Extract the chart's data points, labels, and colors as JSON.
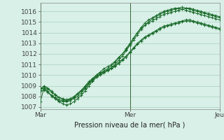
{
  "background_color": "#d8f0e8",
  "grid_color": "#aad0bb",
  "line_color": "#1a6b2a",
  "xlabel": "Pression niveau de la mer( hPa )",
  "ylim": [
    1006.8,
    1016.8
  ],
  "yticks": [
    1007,
    1008,
    1009,
    1010,
    1011,
    1012,
    1013,
    1014,
    1015,
    1016
  ],
  "xtick_labels": [
    "Mar",
    "Mer",
    "Jeu"
  ],
  "xtick_positions": [
    0,
    24,
    48
  ],
  "series": [
    [
      1007.5,
      1008.8,
      1008.5,
      1008.0,
      1007.8,
      1007.6,
      1007.5,
      1007.5,
      1007.6,
      1007.8,
      1008.0,
      1008.3,
      1008.7,
      1009.2,
      1009.6,
      1010.0,
      1010.3,
      1010.6,
      1010.8,
      1011.0,
      1011.3,
      1011.7,
      1012.0,
      1012.4,
      1012.9,
      1013.5,
      1014.0,
      1014.4,
      1014.7,
      1014.9,
      1015.1,
      1015.3,
      1015.5,
      1015.7,
      1015.8,
      1015.9,
      1016.0,
      1016.1,
      1016.2,
      1016.3,
      1016.3,
      1016.2,
      1016.1,
      1016.0,
      1015.9,
      1015.8,
      1015.7,
      1015.6,
      1015.5
    ],
    [
      1008.8,
      1008.7,
      1008.4,
      1008.1,
      1007.8,
      1007.5,
      1007.3,
      1007.2,
      1007.3,
      1007.5,
      1007.8,
      1008.1,
      1008.5,
      1009.0,
      1009.4,
      1009.8,
      1010.1,
      1010.3,
      1010.5,
      1010.7,
      1010.9,
      1011.2,
      1011.5,
      1011.8,
      1012.2,
      1012.6,
      1013.0,
      1013.3,
      1013.6,
      1013.8,
      1014.0,
      1014.2,
      1014.4,
      1014.6,
      1014.7,
      1014.8,
      1014.9,
      1015.0,
      1015.1,
      1015.2,
      1015.2,
      1015.1,
      1015.0,
      1014.9,
      1014.8,
      1014.7,
      1014.6,
      1014.5,
      1014.4
    ],
    [
      1008.5,
      1008.6,
      1008.4,
      1008.1,
      1007.9,
      1007.7,
      1007.6,
      1007.6,
      1007.7,
      1007.9,
      1008.2,
      1008.5,
      1008.8,
      1009.2,
      1009.5,
      1009.8,
      1010.0,
      1010.2,
      1010.4,
      1010.6,
      1010.8,
      1011.1,
      1011.4,
      1011.7,
      1012.1,
      1012.5,
      1012.9,
      1013.2,
      1013.5,
      1013.7,
      1013.9,
      1014.1,
      1014.3,
      1014.5,
      1014.6,
      1014.7,
      1014.8,
      1014.9,
      1015.0,
      1015.1,
      1015.1,
      1015.0,
      1014.9,
      1014.8,
      1014.7,
      1014.6,
      1014.5,
      1014.4,
      1014.3
    ],
    [
      1008.7,
      1009.0,
      1008.8,
      1008.5,
      1008.2,
      1007.9,
      1007.8,
      1007.7,
      1007.8,
      1008.0,
      1008.3,
      1008.6,
      1009.0,
      1009.4,
      1009.7,
      1010.0,
      1010.2,
      1010.4,
      1010.6,
      1010.9,
      1011.2,
      1011.6,
      1012.0,
      1012.5,
      1013.0,
      1013.5,
      1014.0,
      1014.5,
      1014.9,
      1015.2,
      1015.4,
      1015.6,
      1015.8,
      1016.0,
      1016.1,
      1016.2,
      1016.3,
      1016.3,
      1016.2,
      1016.1,
      1016.0,
      1015.9,
      1015.8,
      1015.7,
      1015.6,
      1015.5,
      1015.4,
      1015.3,
      1015.2
    ],
    [
      1008.6,
      1008.9,
      1008.7,
      1008.4,
      1008.1,
      1007.9,
      1007.7,
      1007.6,
      1007.7,
      1007.9,
      1008.2,
      1008.5,
      1008.9,
      1009.3,
      1009.6,
      1009.9,
      1010.1,
      1010.3,
      1010.5,
      1010.7,
      1011.0,
      1011.4,
      1011.8,
      1012.3,
      1012.8,
      1013.3,
      1013.8,
      1014.3,
      1014.7,
      1015.0,
      1015.3,
      1015.5,
      1015.7,
      1015.9,
      1016.0,
      1016.1,
      1016.2,
      1016.3,
      1016.4,
      1016.3,
      1016.2,
      1016.1,
      1016.0,
      1015.9,
      1015.8,
      1015.7,
      1015.6,
      1015.5,
      1015.4
    ]
  ]
}
